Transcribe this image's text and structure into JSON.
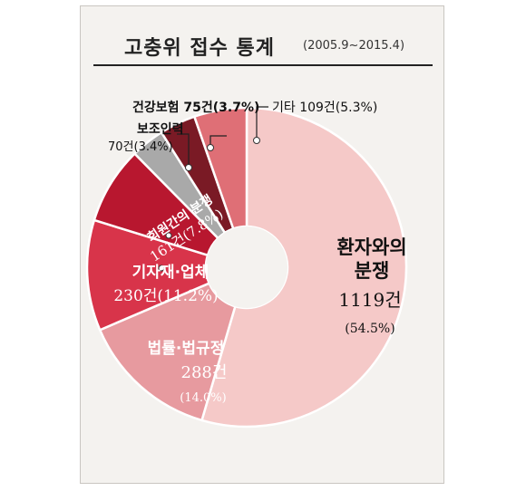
{
  "header": {
    "title": "고충위 접수 통계",
    "subtitle": "(2005.9~2015.4)"
  },
  "colors": {
    "환자와의 분쟁": "#f5c9c8",
    "법률·법규정": "#e79a9f",
    "기자재·업체": "#d8344a",
    "회원간의 분쟁": "#b8172f",
    "보조인력": "#a9a9a9",
    "건강보험": "#7a1a25",
    "기타": "#df6f76"
  },
  "chart_data": {
    "type": "pie",
    "donut": true,
    "title": "고충위 접수 통계",
    "subtitle": "(2005.9~2015.4)",
    "slices": [
      {
        "label": "환자와의 분쟁",
        "value": 1119,
        "percent": 54.5,
        "count_text": "1119건",
        "pct_text": "(54.5%)"
      },
      {
        "label": "법률·법규정",
        "value": 288,
        "percent": 14.0,
        "count_text": "288건",
        "pct_text": "(14.0%)"
      },
      {
        "label": "기자재·업체",
        "value": 230,
        "percent": 11.2,
        "count_text": "230건(11.2%)"
      },
      {
        "label": "회원간의 분쟁",
        "value": 161,
        "percent": 7.8,
        "count_text": "161건(7.8%)"
      },
      {
        "label": "보조인력",
        "value": 70,
        "percent": 3.4,
        "count_text": "70건(3.4%)"
      },
      {
        "label": "건강보험",
        "value": 75,
        "percent": 3.7,
        "count_text": "75건(3.7%)"
      },
      {
        "label": "기타",
        "value": 109,
        "percent": 5.3,
        "count_text": "109건(5.3%)"
      }
    ],
    "slice_labels": {
      "patient_l1": "환자와의",
      "patient_l2": "분쟁",
      "law_l1": "법률·법규정",
      "equip_l1": "기자재·업체",
      "member_l1": "회원간의 분쟁",
      "aux_l1": "보조인력",
      "ins_l1": "건강보험 75건(3.7%)",
      "etc_l1": "기타 109건(5.3%)"
    }
  }
}
